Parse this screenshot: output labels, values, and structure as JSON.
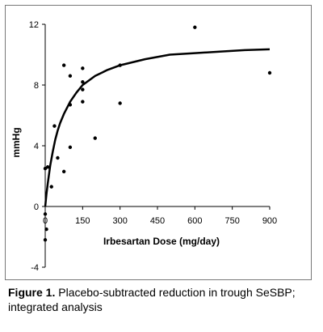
{
  "chart_data": {
    "type": "scatter",
    "xlabel": "Irbesartan Dose (mg/day)",
    "ylabel": "mmHg",
    "xlim": [
      0,
      900
    ],
    "ylim": [
      -4,
      12
    ],
    "xticks": [
      0,
      150,
      300,
      450,
      600,
      750,
      900
    ],
    "yticks": [
      -4,
      0,
      4,
      8,
      12
    ],
    "grid": false,
    "points": [
      {
        "x": 0,
        "y": -2.2
      },
      {
        "x": 0,
        "y": -0.5
      },
      {
        "x": 0,
        "y": 2.5
      },
      {
        "x": 5,
        "y": -1.5
      },
      {
        "x": 10,
        "y": 2.6
      },
      {
        "x": 25,
        "y": 1.3
      },
      {
        "x": 37,
        "y": 5.3
      },
      {
        "x": 50,
        "y": 3.2
      },
      {
        "x": 75,
        "y": 9.3
      },
      {
        "x": 75,
        "y": 2.3
      },
      {
        "x": 100,
        "y": 8.6
      },
      {
        "x": 100,
        "y": 3.9
      },
      {
        "x": 100,
        "y": 6.7
      },
      {
        "x": 150,
        "y": 9.1
      },
      {
        "x": 150,
        "y": 8.2
      },
      {
        "x": 150,
        "y": 7.7
      },
      {
        "x": 150,
        "y": 6.9
      },
      {
        "x": 200,
        "y": 4.5
      },
      {
        "x": 300,
        "y": 9.3
      },
      {
        "x": 300,
        "y": 6.8
      },
      {
        "x": 600,
        "y": 11.8
      },
      {
        "x": 900,
        "y": 8.8
      }
    ],
    "fit_curve": {
      "x": [
        0,
        5,
        10,
        20,
        30,
        40,
        50,
        60,
        75,
        100,
        125,
        150,
        175,
        200,
        250,
        300,
        400,
        500,
        600,
        700,
        800,
        900
      ],
      "y": [
        0,
        0.8,
        1.5,
        2.7,
        3.6,
        4.4,
        5.0,
        5.5,
        6.1,
        6.9,
        7.5,
        8.0,
        8.3,
        8.6,
        9.0,
        9.3,
        9.7,
        10.0,
        10.1,
        10.2,
        10.3,
        10.35
      ]
    }
  },
  "caption": {
    "label": "Figure 1.",
    "text": "Placebo-subtracted reduction in trough SeSBP; integrated analysis"
  }
}
